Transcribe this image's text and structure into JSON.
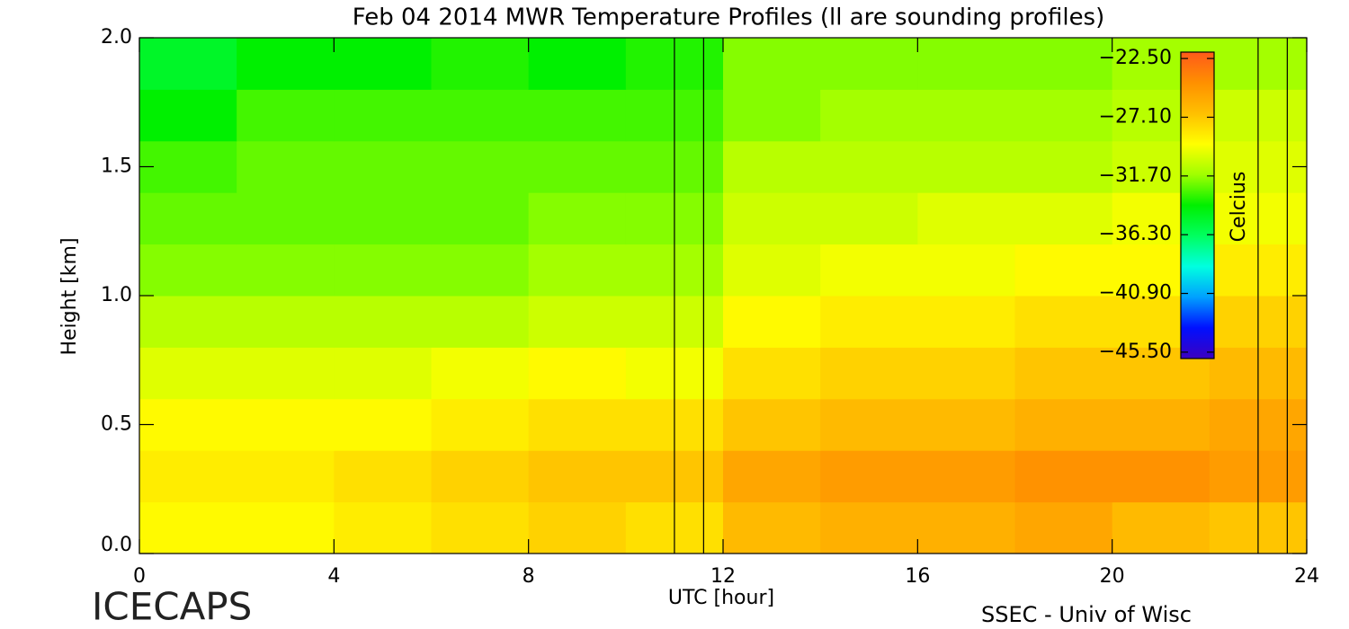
{
  "chart_data": {
    "type": "heatmap",
    "title": "Feb 04 2014 MWR Temperature Profiles (ll are sounding profiles)",
    "x_label": "UTC [hour]",
    "y_label": "Height [km]",
    "colorbar_label": "Celcius",
    "logo_text": "ICECAPS",
    "credit": "SSEC - Univ of Wisc",
    "xlim": [
      0,
      24
    ],
    "xticks": [
      0,
      4,
      8,
      12,
      16,
      20,
      24
    ],
    "ylim": [
      0,
      2.0
    ],
    "yticks": [
      {
        "value": 0,
        "label": "0.0"
      },
      {
        "value": 0.5,
        "label": "0.5"
      },
      {
        "value": 1.0,
        "label": "1.0"
      },
      {
        "value": 1.5,
        "label": "1.5"
      },
      {
        "value": 2.0,
        "label": "2.0"
      }
    ],
    "x": [
      1,
      3,
      5,
      7,
      9,
      11,
      13,
      15,
      17,
      19,
      21,
      23
    ],
    "y": [
      0.1,
      0.3,
      0.5,
      0.7,
      0.9,
      1.1,
      1.3,
      1.5,
      1.7,
      1.9
    ],
    "z": [
      [
        -29,
        -29,
        -28.5,
        -28,
        -27.5,
        -28,
        -26.5,
        -26,
        -26,
        -25.5,
        -26.5,
        -27
      ],
      [
        -28.5,
        -28.5,
        -28,
        -27.5,
        -27,
        -27,
        -25.5,
        -25,
        -25,
        -24.5,
        -24.5,
        -25
      ],
      [
        -29,
        -29,
        -29,
        -28.5,
        -28,
        -28,
        -27,
        -26.5,
        -26.5,
        -26,
        -26,
        -25.5
      ],
      [
        -30,
        -30,
        -30,
        -29.5,
        -29,
        -29.5,
        -28,
        -27.5,
        -27.5,
        -27,
        -27,
        -26.5
      ],
      [
        -31,
        -31,
        -31,
        -31,
        -30.5,
        -30.5,
        -29,
        -28.5,
        -28.5,
        -28,
        -28,
        -27.5
      ],
      [
        -32,
        -32,
        -32,
        -32,
        -31.5,
        -31.5,
        -30,
        -29.5,
        -29.5,
        -29,
        -29,
        -28.5
      ],
      [
        -32.5,
        -32.5,
        -32.5,
        -32.5,
        -32,
        -32,
        -30.5,
        -30.5,
        -30,
        -30,
        -29.5,
        -29.5
      ],
      [
        -33,
        -32.5,
        -32.5,
        -32.5,
        -32.5,
        -32.5,
        -31,
        -31,
        -31,
        -31,
        -30.5,
        -30
      ],
      [
        -34,
        -33,
        -33,
        -33,
        -33,
        -33,
        -32,
        -31.5,
        -31.5,
        -31.5,
        -31,
        -30.5
      ],
      [
        -35,
        -34,
        -34,
        -33.5,
        -34,
        -33.5,
        -32,
        -32,
        -32,
        -32,
        -31.5,
        -31.5
      ]
    ],
    "sounding_times": [
      11.0,
      11.6,
      23.0,
      23.6
    ],
    "clim": [
      -46.0,
      -22.0
    ],
    "colorbar_ticks": [
      {
        "value": -22.5,
        "label": "−22.50"
      },
      {
        "value": -27.1,
        "label": "−27.10"
      },
      {
        "value": -31.7,
        "label": "−31.70"
      },
      {
        "value": -36.3,
        "label": "−36.30"
      },
      {
        "value": -40.9,
        "label": "−40.90"
      },
      {
        "value": -45.5,
        "label": "−45.50"
      }
    ],
    "colormap": [
      "#3c00c0",
      "#0010ff",
      "#00a0ff",
      "#00ffe0",
      "#00ff60",
      "#00f000",
      "#a0ff00",
      "#ffff00",
      "#ffc000",
      "#ff9000",
      "#ff5a1a"
    ]
  }
}
